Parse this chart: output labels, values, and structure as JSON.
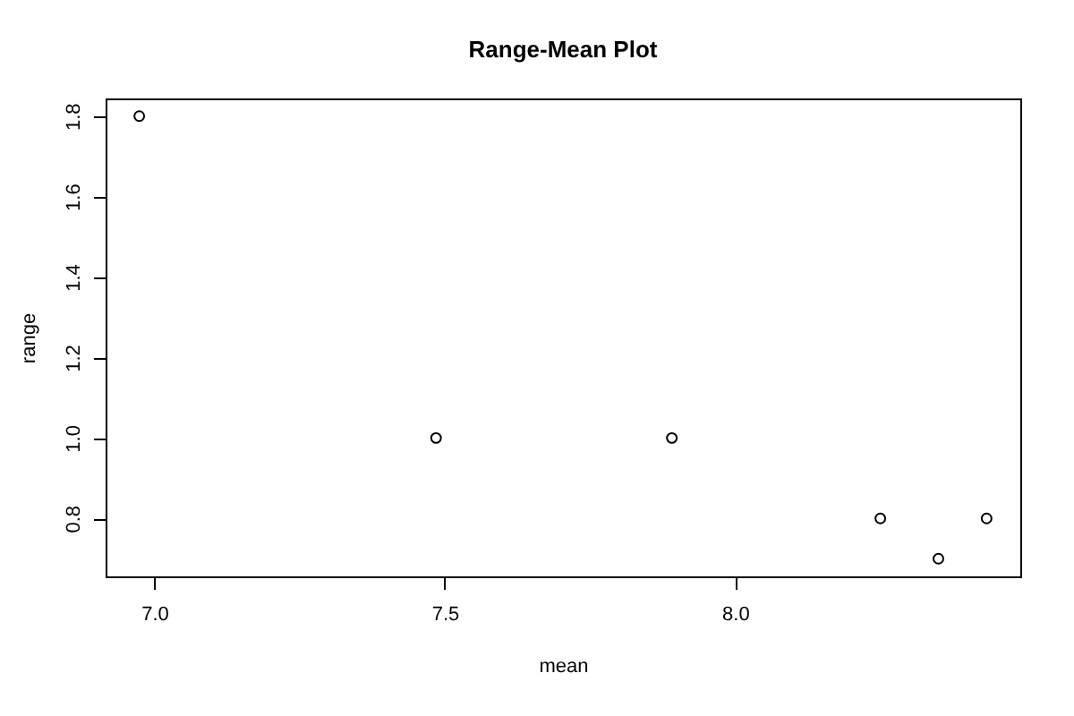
{
  "chart_data": {
    "type": "scatter",
    "title": "Range-Mean Plot",
    "xlabel": "mean",
    "ylabel": "range",
    "x": [
      6.974,
      7.485,
      7.891,
      8.25,
      8.35,
      8.433
    ],
    "series": [
      {
        "color": "#000000",
        "values": [
          1.8,
          1.0,
          1.0,
          0.8,
          0.7,
          0.8
        ]
      }
    ],
    "xlim": [
      6.916,
      8.491
    ],
    "xticks": [
      {
        "value": 7.0,
        "label": "7.0"
      },
      7.5,
      {
        "value": 8.0,
        "label": "8.0"
      }
    ],
    "ylim": [
      0.656,
      1.844
    ],
    "yticks": [
      0.8,
      {
        "value": 1.0,
        "label": "1.0"
      },
      1.2,
      1.4,
      1.6,
      1.8
    ],
    "grid": false
  }
}
